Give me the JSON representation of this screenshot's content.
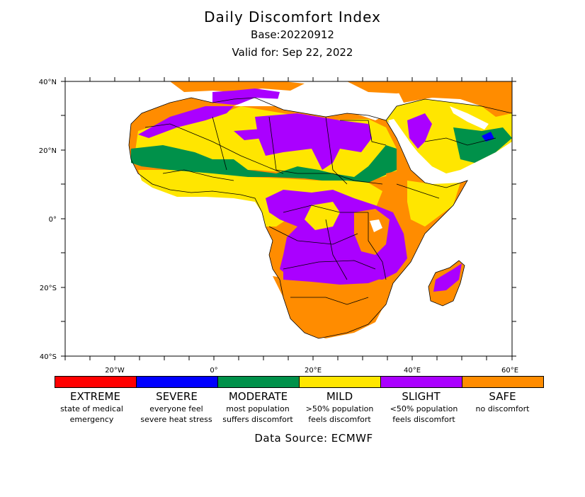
{
  "header": {
    "title": "Daily Discomfort Index",
    "base": "Base:20220912",
    "valid": "Valid for: Sep 22, 2022"
  },
  "axes": {
    "lat_labels": [
      "40°N",
      "20°N",
      "0°",
      "20°S",
      "40°S"
    ],
    "lon_labels": [
      "20°W",
      "0°",
      "20°E",
      "40°E",
      "60°E"
    ]
  },
  "colors": {
    "extreme": "#ff0000",
    "severe": "#0000ff",
    "moderate": "#00914a",
    "mild": "#ffe600",
    "slight": "#aa00ff",
    "safe": "#ff8c00"
  },
  "legend": [
    {
      "name": "EXTREME",
      "line1": "state of medical",
      "line2": "emergency",
      "color": "#ff0000"
    },
    {
      "name": "SEVERE",
      "line1": "everyone feel",
      "line2": "severe heat stress",
      "color": "#0000ff"
    },
    {
      "name": "MODERATE",
      "line1": "most population",
      "line2": "suffers discomfort",
      "color": "#00914a"
    },
    {
      "name": "MILD",
      "line1": ">50% population",
      "line2": "feels discomfort",
      "color": "#ffe600"
    },
    {
      "name": "SLIGHT",
      "line1": "<50% population",
      "line2": "feels discomfort",
      "color": "#aa00ff"
    },
    {
      "name": "SAFE",
      "line1": "no discomfort",
      "line2": "",
      "color": "#ff8c00"
    }
  ],
  "footer": {
    "source": "Data Source: ECMWF"
  }
}
